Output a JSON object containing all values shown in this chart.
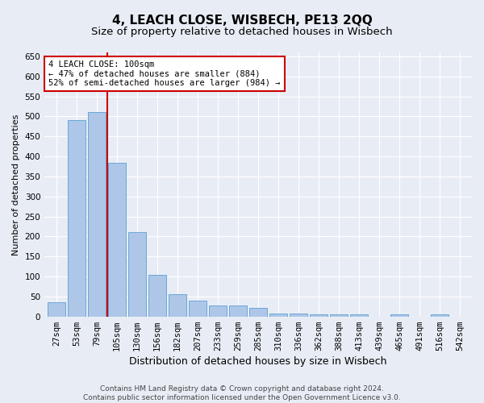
{
  "title": "4, LEACH CLOSE, WISBECH, PE13 2QQ",
  "subtitle": "Size of property relative to detached houses in Wisbech",
  "xlabel": "Distribution of detached houses by size in Wisbech",
  "ylabel": "Number of detached properties",
  "categories": [
    "27sqm",
    "53sqm",
    "79sqm",
    "105sqm",
    "130sqm",
    "156sqm",
    "182sqm",
    "207sqm",
    "233sqm",
    "259sqm",
    "285sqm",
    "310sqm",
    "336sqm",
    "362sqm",
    "388sqm",
    "413sqm",
    "439sqm",
    "465sqm",
    "491sqm",
    "516sqm",
    "542sqm"
  ],
  "values": [
    35,
    490,
    510,
    385,
    210,
    105,
    55,
    40,
    27,
    27,
    22,
    8,
    8,
    6,
    6,
    5,
    0,
    5,
    0,
    5,
    0
  ],
  "bar_color": "#aec6e8",
  "bar_edge_color": "#5a9fd4",
  "vline_x_index": 2.5,
  "vline_color": "#cc0000",
  "annotation_text": "4 LEACH CLOSE: 100sqm\n← 47% of detached houses are smaller (884)\n52% of semi-detached houses are larger (984) →",
  "annotation_box_color": "white",
  "annotation_box_edge_color": "#cc0000",
  "ylim": [
    0,
    660
  ],
  "yticks": [
    0,
    50,
    100,
    150,
    200,
    250,
    300,
    350,
    400,
    450,
    500,
    550,
    600,
    650
  ],
  "footer_line1": "Contains HM Land Registry data © Crown copyright and database right 2024.",
  "footer_line2": "Contains public sector information licensed under the Open Government Licence v3.0.",
  "bg_color": "#e8edf5",
  "plot_bg_color": "#e8edf5",
  "title_fontsize": 11,
  "subtitle_fontsize": 9.5,
  "xlabel_fontsize": 9,
  "ylabel_fontsize": 8,
  "tick_fontsize": 7.5,
  "footer_fontsize": 6.5,
  "annot_fontsize": 7.5
}
